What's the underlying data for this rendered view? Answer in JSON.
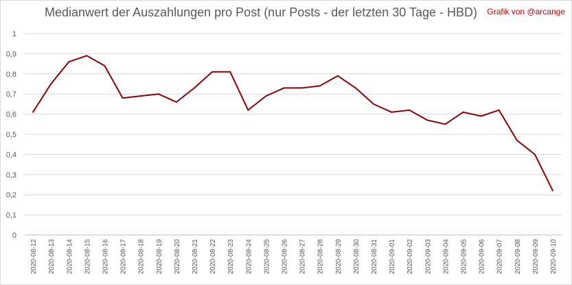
{
  "chart_data": {
    "type": "line",
    "title": "Medianwert der Auszahlungen pro Post (nur Posts - der letzten 30 Tage - HBD)",
    "credit": "Grafik von @arcange",
    "xlabel": "",
    "ylabel": "",
    "ylim": [
      0,
      1
    ],
    "y_ticks": [
      "0",
      "0,1",
      "0,2",
      "0,3",
      "0,4",
      "0,5",
      "0,6",
      "0,7",
      "0,8",
      "0,9",
      "1"
    ],
    "grid": true,
    "line_color": "#8b0000",
    "categories": [
      "2020-08-12",
      "2020-08-13",
      "2020-08-14",
      "2020-08-15",
      "2020-08-16",
      "2020-08-17",
      "2020-08-18",
      "2020-08-19",
      "2020-08-20",
      "2020-08-21",
      "2020-08-22",
      "2020-08-23",
      "2020-08-24",
      "2020-08-25",
      "2020-08-26",
      "2020-08-27",
      "2020-08-28",
      "2020-08-29",
      "2020-08-30",
      "2020-08-31",
      "2020-09-01",
      "2020-09-02",
      "2020-09-03",
      "2020-09-04",
      "2020-09-05",
      "2020-09-06",
      "2020-09-07",
      "2020-09-08",
      "2020-09-09",
      "2020-09-10"
    ],
    "values": [
      0.61,
      0.75,
      0.86,
      0.89,
      0.84,
      0.68,
      0.69,
      0.7,
      0.66,
      0.73,
      0.81,
      0.81,
      0.62,
      0.69,
      0.73,
      0.73,
      0.74,
      0.79,
      0.73,
      0.65,
      0.61,
      0.62,
      0.57,
      0.55,
      0.61,
      0.59,
      0.62,
      0.47,
      0.4,
      0.22
    ]
  }
}
